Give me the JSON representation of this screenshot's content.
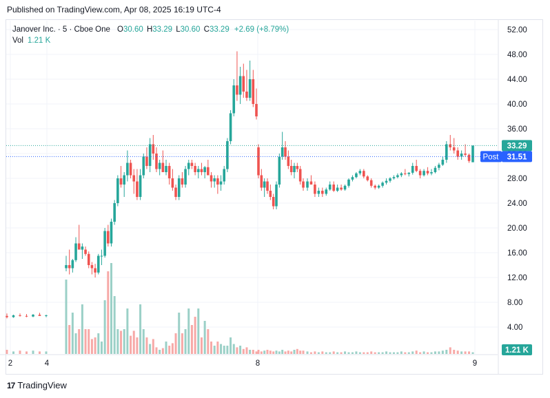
{
  "header": {
    "published": "Published on TradingView.com, Apr 08, 2025 16:19 UTC-4"
  },
  "footer": {
    "brand": "TradingView"
  },
  "legend": {
    "symbol": "Janover Inc. · 5 · Cboe One",
    "o_label": "O",
    "o_value": "30.60",
    "h_label": "H",
    "h_value": "33.29",
    "l_label": "L",
    "l_value": "30.60",
    "c_label": "C",
    "c_value": "33.29",
    "change": "+2.69 (+8.79%)",
    "vol_label": "Vol",
    "vol_value": "1.21 K"
  },
  "price_tags": {
    "last": "33.29",
    "post_label": "Post",
    "post": "31.51",
    "volume": "1.21 K"
  },
  "colors": {
    "up": "#26a69a",
    "down": "#ef5350",
    "up_vol": "#9bd0c7",
    "down_vol": "#f7a9a7",
    "grid": "#f0f3fa",
    "post": "#2962ff"
  },
  "chart_data": {
    "type": "candlestick",
    "y_axis": {
      "min": 0,
      "max": 54,
      "ticks": [
        "4.00",
        "8.00",
        "12.00",
        "16.00",
        "20.00",
        "24.00",
        "28.00",
        "32.00",
        "36.00",
        "40.00",
        "44.00",
        "48.00",
        "52.00"
      ]
    },
    "x_axis": {
      "ticks": [
        "2",
        "4",
        "8",
        "9"
      ]
    },
    "last_price": 33.29,
    "post_price": 31.51,
    "series": [
      {
        "name": "Janover Inc.",
        "ohlc": [
          [
            5.8,
            6.2,
            5.4,
            5.6
          ],
          [
            5.6,
            6.0,
            5.5,
            5.9
          ],
          [
            5.9,
            6.2,
            5.7,
            5.8
          ],
          [
            5.8,
            6.1,
            5.6,
            5.7
          ],
          [
            5.7,
            6.1,
            5.6,
            6.0
          ],
          [
            6.0,
            6.3,
            5.9,
            5.8
          ],
          [
            5.8,
            6.0,
            5.6,
            5.9
          ],
          [
            13.5,
            15.5,
            13.0,
            14.0
          ],
          [
            14.0,
            16.5,
            12.5,
            13.5
          ],
          [
            13.5,
            15.0,
            12.8,
            14.8
          ],
          [
            14.8,
            18.5,
            14.5,
            17.5
          ],
          [
            17.5,
            20.5,
            16.5,
            16.5
          ],
          [
            16.5,
            17.5,
            15.0,
            17.0
          ],
          [
            16.5,
            17.0,
            15.5,
            15.8
          ],
          [
            15.8,
            16.2,
            13.5,
            14.0
          ],
          [
            14.0,
            14.5,
            12.5,
            13.5
          ],
          [
            13.5,
            14.2,
            12.0,
            12.8
          ],
          [
            12.8,
            15.8,
            12.5,
            15.5
          ],
          [
            15.5,
            16.5,
            14.0,
            15.5
          ],
          [
            15.5,
            20.0,
            15.2,
            19.5
          ],
          [
            19.5,
            20.5,
            17.0,
            17.5
          ],
          [
            17.5,
            21.5,
            17.0,
            21.0
          ],
          [
            21.0,
            24.5,
            20.5,
            24.0
          ],
          [
            24.0,
            28.5,
            23.5,
            28.0
          ],
          [
            28.0,
            30.0,
            26.5,
            27.0
          ],
          [
            27.0,
            29.0,
            25.0,
            28.5
          ],
          [
            28.5,
            32.5,
            27.5,
            30.5
          ],
          [
            30.5,
            31.0,
            28.0,
            28.5
          ],
          [
            28.5,
            29.5,
            25.5,
            27.5
          ],
          [
            27.5,
            29.5,
            24.5,
            25.0
          ],
          [
            25.0,
            29.5,
            24.5,
            28.5
          ],
          [
            28.5,
            32.0,
            28.0,
            31.5
          ],
          [
            31.5,
            33.0,
            29.5,
            30.0
          ],
          [
            30.0,
            34.5,
            29.0,
            33.5
          ],
          [
            33.5,
            35.0,
            31.0,
            32.0
          ],
          [
            32.0,
            33.0,
            29.0,
            29.5
          ],
          [
            29.5,
            31.0,
            28.5,
            30.5
          ],
          [
            30.5,
            32.5,
            29.0,
            29.0
          ],
          [
            29.0,
            31.0,
            28.5,
            30.0
          ],
          [
            30.0,
            30.5,
            27.0,
            28.0
          ],
          [
            28.0,
            29.5,
            26.0,
            26.5
          ],
          [
            26.5,
            27.0,
            24.5,
            25.0
          ],
          [
            25.0,
            28.5,
            24.5,
            28.0
          ],
          [
            28.0,
            29.0,
            26.5,
            27.0
          ],
          [
            27.0,
            30.0,
            26.5,
            29.5
          ],
          [
            29.5,
            31.0,
            28.5,
            30.5
          ],
          [
            30.5,
            31.0,
            29.5,
            30.0
          ],
          [
            30.0,
            30.5,
            28.5,
            29.0
          ],
          [
            29.0,
            30.0,
            28.0,
            29.5
          ],
          [
            29.5,
            30.5,
            28.5,
            29.0
          ],
          [
            29.0,
            30.0,
            28.0,
            29.8
          ],
          [
            29.8,
            31.0,
            29.0,
            28.5
          ],
          [
            28.5,
            29.0,
            26.5,
            27.5
          ],
          [
            27.5,
            28.5,
            26.5,
            28.0
          ],
          [
            28.0,
            28.5,
            25.5,
            27.0
          ],
          [
            27.0,
            28.5,
            26.0,
            27.5
          ],
          [
            27.5,
            30.0,
            27.0,
            29.5
          ],
          [
            29.5,
            34.5,
            29.0,
            34.0
          ],
          [
            34.0,
            39.0,
            33.5,
            38.5
          ],
          [
            38.5,
            44.0,
            38.0,
            43.0
          ],
          [
            43.0,
            48.5,
            40.5,
            41.5
          ],
          [
            41.5,
            46.0,
            40.0,
            44.5
          ],
          [
            44.5,
            46.5,
            41.0,
            42.0
          ],
          [
            42.0,
            45.5,
            40.5,
            41.0
          ],
          [
            41.0,
            47.0,
            40.5,
            44.0
          ],
          [
            44.0,
            45.5,
            39.5,
            40.0
          ],
          [
            40.0,
            42.5,
            37.5,
            38.0
          ],
          [
            33.0,
            33.5,
            28.0,
            28.5
          ],
          [
            28.5,
            29.5,
            26.0,
            26.5
          ],
          [
            26.5,
            28.0,
            25.0,
            27.5
          ],
          [
            27.5,
            28.0,
            25.5,
            26.0
          ],
          [
            26.0,
            27.0,
            24.5,
            25.0
          ],
          [
            25.0,
            25.5,
            23.0,
            23.5
          ],
          [
            23.5,
            27.5,
            23.0,
            27.0
          ],
          [
            27.0,
            32.0,
            26.5,
            31.5
          ],
          [
            31.5,
            35.5,
            31.0,
            33.0
          ],
          [
            33.0,
            34.0,
            31.0,
            31.5
          ],
          [
            31.5,
            32.5,
            29.5,
            30.0
          ],
          [
            30.0,
            31.0,
            28.5,
            29.0
          ],
          [
            29.0,
            30.5,
            28.0,
            30.0
          ],
          [
            30.0,
            30.5,
            29.0,
            29.5
          ],
          [
            29.5,
            30.0,
            27.0,
            27.5
          ],
          [
            27.5,
            28.0,
            26.0,
            26.5
          ],
          [
            26.5,
            28.0,
            26.0,
            27.5
          ],
          [
            27.5,
            28.5,
            27.0,
            27.0
          ],
          [
            27.0,
            27.5,
            25.0,
            25.5
          ],
          [
            25.5,
            26.5,
            25.0,
            26.0
          ],
          [
            26.0,
            26.5,
            25.0,
            25.5
          ],
          [
            25.5,
            26.5,
            25.2,
            26.2
          ],
          [
            26.2,
            27.5,
            26.0,
            27.0
          ],
          [
            27.0,
            27.5,
            25.8,
            26.0
          ],
          [
            26.0,
            27.0,
            25.8,
            26.5
          ],
          [
            26.5,
            27.0,
            26.0,
            26.2
          ],
          [
            26.2,
            27.0,
            26.0,
            26.8
          ],
          [
            26.8,
            28.0,
            26.5,
            27.8
          ],
          [
            27.8,
            28.5,
            27.5,
            28.2
          ],
          [
            28.2,
            29.0,
            28.0,
            28.8
          ],
          [
            28.8,
            29.5,
            28.5,
            29.2
          ],
          [
            29.2,
            29.5,
            28.0,
            28.3
          ],
          [
            28.3,
            28.5,
            27.5,
            27.7
          ],
          [
            27.7,
            28.0,
            26.5,
            26.8
          ],
          [
            26.8,
            27.0,
            26.2,
            26.5
          ],
          [
            26.5,
            27.0,
            26.3,
            26.8
          ],
          [
            26.8,
            27.5,
            26.5,
            27.3
          ],
          [
            27.3,
            28.0,
            27.0,
            27.6
          ],
          [
            27.6,
            28.2,
            27.3,
            28.0
          ],
          [
            28.0,
            28.5,
            27.8,
            28.2
          ],
          [
            28.2,
            28.8,
            28.0,
            28.5
          ],
          [
            28.5,
            29.0,
            28.2,
            28.8
          ],
          [
            28.8,
            29.5,
            28.5,
            28.7
          ],
          [
            28.7,
            29.0,
            28.3,
            28.9
          ],
          [
            28.9,
            30.5,
            28.6,
            30.0
          ],
          [
            30.0,
            31.0,
            29.0,
            29.2
          ],
          [
            29.2,
            29.5,
            28.0,
            28.5
          ],
          [
            28.5,
            29.5,
            28.3,
            29.2
          ],
          [
            29.2,
            29.8,
            28.5,
            28.8
          ],
          [
            28.8,
            29.5,
            28.5,
            29.0
          ],
          [
            29.0,
            30.0,
            28.8,
            29.7
          ],
          [
            29.7,
            30.5,
            29.3,
            30.2
          ],
          [
            30.2,
            31.5,
            30.0,
            31.0
          ],
          [
            31.0,
            34.0,
            30.5,
            33.5
          ],
          [
            33.5,
            35.0,
            32.5,
            33.0
          ],
          [
            33.0,
            34.5,
            32.0,
            32.5
          ],
          [
            32.5,
            33.0,
            31.0,
            31.5
          ],
          [
            31.5,
            32.5,
            31.0,
            32.0
          ],
          [
            32.0,
            33.5,
            31.5,
            31.8
          ],
          [
            31.8,
            32.0,
            30.5,
            30.8
          ],
          [
            30.6,
            33.29,
            30.6,
            33.29
          ]
        ]
      }
    ],
    "volume": [
      0.05,
      0.03,
      0.04,
      0.03,
      0.04,
      0.03,
      0.03,
      0.9,
      0.35,
      0.5,
      0.25,
      0.3,
      0.6,
      0.3,
      0.3,
      0.18,
      0.2,
      0.25,
      0.15,
      0.65,
      1.0,
      1.1,
      0.7,
      0.3,
      0.28,
      0.3,
      0.55,
      0.22,
      0.28,
      0.2,
      0.6,
      0.3,
      0.2,
      0.12,
      0.18,
      0.08,
      0.05,
      0.07,
      0.15,
      0.1,
      0.13,
      0.25,
      0.5,
      0.25,
      0.3,
      0.55,
      0.35,
      0.45,
      0.55,
      0.2,
      0.4,
      0.3,
      0.15,
      0.1,
      0.15,
      0.12,
      0.1,
      0.1,
      0.2,
      0.12,
      0.08,
      0.1,
      0.06,
      0.08,
      0.05,
      0.05,
      0.03,
      0.05,
      0.03,
      0.04,
      0.05,
      0.04,
      0.03,
      0.04,
      0.03,
      0.05,
      0.03,
      0.04,
      0.03,
      0.05,
      0.06,
      0.04,
      0.04,
      0.03,
      0.02,
      0.03,
      0.02,
      0.03,
      0.02,
      0.02,
      0.03,
      0.02,
      0.02,
      0.03,
      0.02,
      0.02,
      0.03,
      0.02,
      0.02,
      0.02,
      0.03,
      0.02,
      0.02,
      0.02,
      0.03,
      0.02,
      0.02,
      0.02,
      0.03,
      0.02,
      0.02,
      0.03,
      0.04,
      0.02,
      0.03,
      0.02,
      0.02,
      0.03,
      0.03,
      0.04,
      0.05,
      0.08,
      0.05,
      0.04,
      0.03,
      0.03,
      0.03,
      0.02
    ]
  }
}
